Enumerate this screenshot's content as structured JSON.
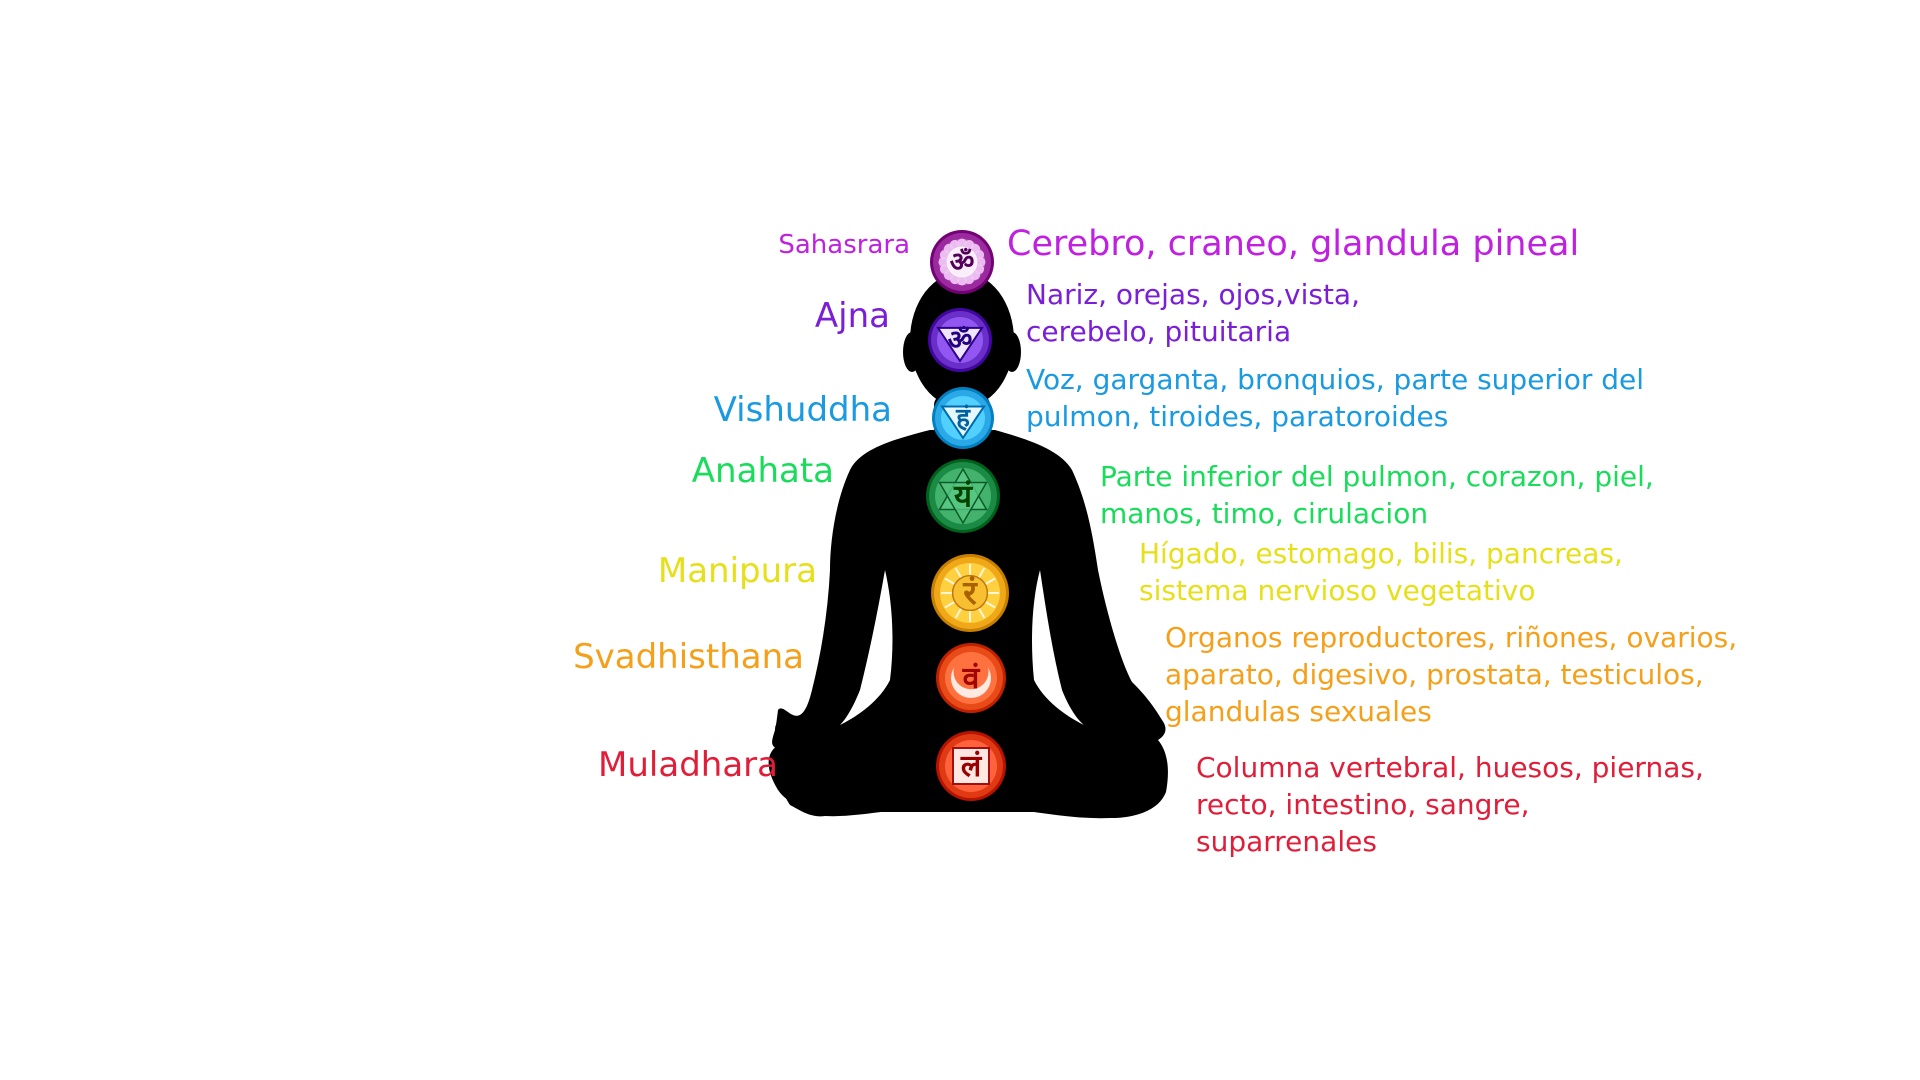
{
  "chakras": [
    {
      "name": "Sahasrara",
      "description_lines": [
        "Cerebro, craneo, glandula pineal"
      ],
      "color": "#c020e0",
      "symbol_color": "#9a2a9e",
      "symbol_glyph": "ॐ",
      "icon_name": "sahasrara-lotus-icon"
    },
    {
      "name": "Ajna",
      "description_lines": [
        "Nariz, orejas, ojos,vista,",
        "cerebelo, pituitaria"
      ],
      "color": "#7a1fd6",
      "symbol_color": "#6a2fc8",
      "symbol_glyph": "ॐ",
      "icon_name": "ajna-triangle-icon"
    },
    {
      "name": "Vishuddha",
      "description_lines": [
        "Voz, garganta, bronquios, parte superior del",
        "pulmon, tiroides, paratoroides"
      ],
      "color": "#1a9ae0",
      "symbol_color": "#2aa8e8",
      "symbol_glyph": "हं",
      "icon_name": "vishuddha-triangle-icon"
    },
    {
      "name": "Anahata",
      "description_lines": [
        "Parte inferior del pulmon, corazon, piel,",
        "manos, timo, cirulacion"
      ],
      "color": "#18dc5a",
      "symbol_color": "#1a8a44",
      "symbol_glyph": "यं",
      "icon_name": "anahata-hexagram-icon"
    },
    {
      "name": "Manipura",
      "description_lines": [
        "Hígado, estomago, bilis, pancreas,",
        "sistema nervioso vegetativo"
      ],
      "color": "#e6e01a",
      "symbol_color": "#f0a818",
      "symbol_glyph": "रं",
      "icon_name": "manipura-sun-icon"
    },
    {
      "name": "Svadhisthana",
      "description_lines": [
        "Organos reproductores, riñones, ovarios,",
        "aparato, digesivo, prostata, testiculos,",
        "glandulas sexuales"
      ],
      "color": "#f5a01a",
      "symbol_color": "#e84a18",
      "symbol_glyph": "वं",
      "icon_name": "svadhisthana-crescent-icon"
    },
    {
      "name": "Muladhara",
      "description_lines": [
        "Columna vertebral, huesos, piernas,",
        "recto, intestino, sangre,",
        "suparrenales"
      ],
      "color": "#e01e3a",
      "symbol_color": "#e03a14",
      "symbol_glyph": "लं",
      "icon_name": "muladhara-square-icon"
    }
  ],
  "figure_icon": "meditating-silhouette-icon",
  "silhouette_color": "#000000"
}
